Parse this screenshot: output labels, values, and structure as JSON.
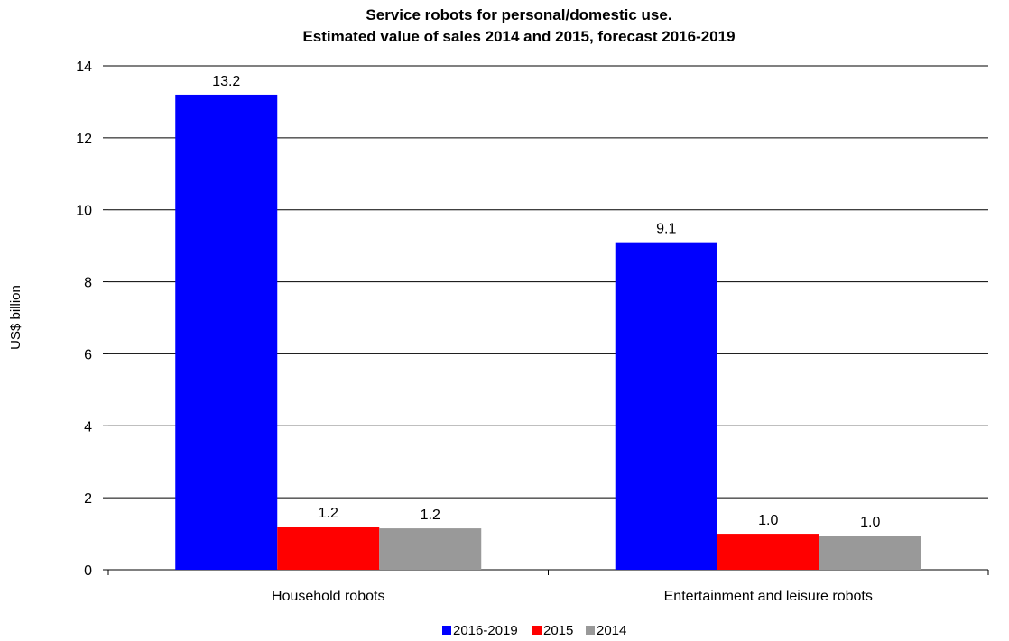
{
  "chart_data": {
    "type": "bar",
    "title_lines": [
      "Service robots for personal/domestic use.",
      "Estimated value of sales 2014 and 2015, forecast 2016-2019"
    ],
    "xlabel": "",
    "ylabel": "US$ billion",
    "ylim": [
      0,
      14
    ],
    "yticks": [
      0,
      2,
      4,
      6,
      8,
      10,
      12,
      14
    ],
    "grid": true,
    "legend_position": "bottom",
    "categories": [
      "Household robots",
      "Entertainment and leisure robots"
    ],
    "series": [
      {
        "name": "2016-2019",
        "color": "#0000ff",
        "values": [
          13.2,
          9.1
        ],
        "labels": [
          "13.2",
          "9.1"
        ]
      },
      {
        "name": "2015",
        "color": "#ff0000",
        "values": [
          1.2,
          1.0
        ],
        "labels": [
          "1.2",
          "1.0"
        ]
      },
      {
        "name": "2014",
        "color": "#999999",
        "values": [
          1.15,
          0.95
        ],
        "labels": [
          "1.2",
          "1.0"
        ]
      }
    ]
  }
}
